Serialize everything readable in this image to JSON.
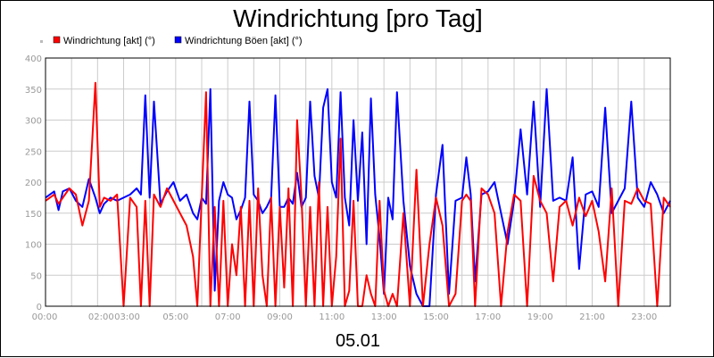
{
  "chart_data": {
    "type": "line",
    "title": "Windrichtung [pro Tag]",
    "xlabel": "05.01",
    "ylabel": "",
    "ylim": [
      0,
      400
    ],
    "xlim": [
      "00:00",
      "24:00"
    ],
    "y_ticks": [
      "0",
      "50",
      "100",
      "150",
      "200",
      "250",
      "300",
      "350",
      "400"
    ],
    "x_ticks": [
      "00:00",
      "02:00",
      "03:00",
      "05:00",
      "07:00",
      "09:00",
      "11:00",
      "13:00",
      "15:00",
      "17:00",
      "19:00",
      "21:00",
      "23:00"
    ],
    "x_tick_hours": [
      0,
      2,
      3,
      5,
      7,
      9,
      11,
      13,
      15,
      17,
      19,
      21,
      23
    ],
    "grid": true,
    "legend_position": "top-left",
    "series": [
      {
        "name": "Windrichtung Böen [akt] (°)",
        "color": "#0000ff",
        "x": [
          "00:00",
          "00:20",
          "00:30",
          "00:40",
          "00:55",
          "01:10",
          "01:25",
          "01:40",
          "01:55",
          "02:05",
          "02:15",
          "02:30",
          "02:45",
          "03:00",
          "03:15",
          "03:30",
          "03:40",
          "03:50",
          "04:00",
          "04:10",
          "04:25",
          "04:40",
          "04:55",
          "05:10",
          "05:25",
          "05:40",
          "05:50",
          "06:00",
          "06:10",
          "06:20",
          "06:30",
          "06:40",
          "06:50",
          "07:00",
          "07:10",
          "07:20",
          "07:30",
          "07:40",
          "07:50",
          "08:00",
          "08:10",
          "08:20",
          "08:30",
          "08:40",
          "08:50",
          "09:00",
          "09:10",
          "09:20",
          "09:30",
          "09:40",
          "09:50",
          "10:00",
          "10:10",
          "10:20",
          "10:30",
          "10:40",
          "10:50",
          "11:00",
          "11:10",
          "11:20",
          "11:30",
          "11:40",
          "11:50",
          "12:00",
          "12:10",
          "12:20",
          "12:30",
          "12:40",
          "12:50",
          "13:00",
          "13:10",
          "13:20",
          "13:30",
          "13:45",
          "14:00",
          "14:15",
          "14:30",
          "14:45",
          "15:00",
          "15:15",
          "15:30",
          "15:45",
          "16:00",
          "16:10",
          "16:20",
          "16:30",
          "16:45",
          "17:00",
          "17:15",
          "17:30",
          "17:45",
          "18:00",
          "18:15",
          "18:30",
          "18:45",
          "19:00",
          "19:15",
          "19:30",
          "19:45",
          "20:00",
          "20:15",
          "20:30",
          "20:45",
          "21:00",
          "21:15",
          "21:30",
          "21:45",
          "22:00",
          "22:15",
          "22:30",
          "22:45",
          "23:00",
          "23:15",
          "23:30",
          "23:45",
          "24:00"
        ],
        "values": [
          175,
          185,
          155,
          185,
          190,
          170,
          160,
          205,
          175,
          150,
          165,
          175,
          170,
          175,
          180,
          190,
          180,
          340,
          175,
          330,
          165,
          185,
          200,
          170,
          180,
          150,
          140,
          175,
          165,
          350,
          25,
          170,
          200,
          180,
          175,
          140,
          155,
          175,
          330,
          180,
          170,
          150,
          160,
          175,
          340,
          160,
          160,
          175,
          165,
          215,
          160,
          175,
          330,
          210,
          175,
          320,
          350,
          200,
          175,
          345,
          175,
          130,
          300,
          170,
          280,
          100,
          335,
          180,
          110,
          20,
          175,
          140,
          345,
          170,
          65,
          20,
          0,
          0,
          180,
          260,
          20,
          170,
          175,
          240,
          180,
          40,
          180,
          185,
          200,
          150,
          100,
          170,
          285,
          180,
          330,
          160,
          350,
          170,
          175,
          170,
          240,
          60,
          180,
          185,
          160,
          320,
          150,
          170,
          190,
          330,
          175,
          160,
          200,
          180,
          150,
          170
        ]
      },
      {
        "name": "Windrichtung [akt] (°)",
        "color": "#ff0000",
        "x": [
          "00:00",
          "00:20",
          "00:30",
          "00:40",
          "00:55",
          "01:10",
          "01:25",
          "01:40",
          "01:55",
          "02:05",
          "02:15",
          "02:30",
          "02:45",
          "03:00",
          "03:15",
          "03:30",
          "03:40",
          "03:50",
          "04:00",
          "04:10",
          "04:25",
          "04:40",
          "04:55",
          "05:10",
          "05:25",
          "05:40",
          "05:50",
          "06:00",
          "06:10",
          "06:20",
          "06:30",
          "06:40",
          "06:50",
          "07:00",
          "07:10",
          "07:20",
          "07:30",
          "07:40",
          "07:50",
          "08:00",
          "08:10",
          "08:20",
          "08:30",
          "08:40",
          "08:50",
          "09:00",
          "09:10",
          "09:20",
          "09:30",
          "09:40",
          "09:50",
          "10:00",
          "10:10",
          "10:20",
          "10:30",
          "10:40",
          "10:50",
          "11:00",
          "11:10",
          "11:20",
          "11:30",
          "11:40",
          "11:50",
          "12:00",
          "12:10",
          "12:20",
          "12:30",
          "12:40",
          "12:50",
          "13:00",
          "13:10",
          "13:20",
          "13:30",
          "13:45",
          "14:00",
          "14:15",
          "14:30",
          "14:45",
          "15:00",
          "15:15",
          "15:30",
          "15:45",
          "16:00",
          "16:10",
          "16:20",
          "16:30",
          "16:45",
          "17:00",
          "17:15",
          "17:30",
          "17:45",
          "18:00",
          "18:15",
          "18:30",
          "18:45",
          "19:00",
          "19:15",
          "19:30",
          "19:45",
          "20:00",
          "20:15",
          "20:30",
          "20:45",
          "21:00",
          "21:15",
          "21:30",
          "21:45",
          "22:00",
          "22:15",
          "22:30",
          "22:45",
          "23:00",
          "23:15",
          "23:30",
          "23:45",
          "24:00"
        ],
        "values": [
          170,
          180,
          165,
          175,
          190,
          180,
          130,
          170,
          360,
          160,
          175,
          170,
          180,
          0,
          175,
          160,
          0,
          170,
          0,
          180,
          160,
          190,
          170,
          150,
          130,
          80,
          0,
          175,
          345,
          0,
          160,
          0,
          170,
          0,
          100,
          50,
          160,
          0,
          170,
          0,
          190,
          50,
          0,
          175,
          0,
          160,
          30,
          190,
          0,
          300,
          175,
          0,
          160,
          0,
          200,
          0,
          160,
          0,
          80,
          270,
          0,
          25,
          170,
          0,
          0,
          50,
          20,
          0,
          170,
          25,
          0,
          20,
          0,
          150,
          0,
          220,
          0,
          100,
          175,
          130,
          0,
          20,
          170,
          180,
          170,
          0,
          190,
          180,
          150,
          0,
          120,
          180,
          170,
          0,
          210,
          170,
          150,
          40,
          160,
          170,
          130,
          175,
          145,
          170,
          120,
          40,
          190,
          0,
          170,
          165,
          190,
          170,
          165,
          0,
          175,
          160
        ]
      }
    ]
  }
}
